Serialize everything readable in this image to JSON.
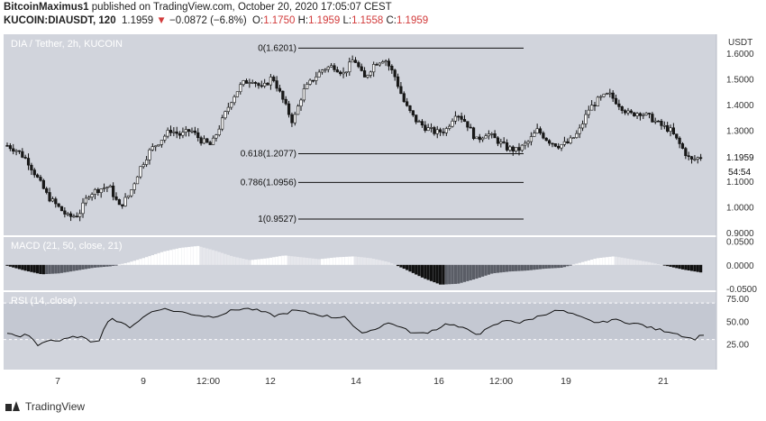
{
  "header": {
    "author": "BitcoinMaximus1",
    "published_text": "published on TradingView.com, October 20, 2020 17:05:07 CEST",
    "symbol": "KUCOIN:DIAUSDT, 120",
    "last": "1.1959",
    "change_icon": "down-triangle-icon",
    "change": "−0.0872 (−6.8%)",
    "o_label": "O:",
    "o_value": "1.1750",
    "h_label": "H:",
    "h_value": "1.1959",
    "l_label": "L:",
    "l_value": "1.1558",
    "c_label": "C:",
    "c_value": "1.1959"
  },
  "main_pane": {
    "legend": "DIA / Tether, 2h, KUCOIN",
    "axis_unit": "USDT",
    "price_tag": "1.1959",
    "countdown": "54:54"
  },
  "macd_pane": {
    "legend": "MACD (21, 50, close, 21)"
  },
  "rsi_pane": {
    "legend": "RSI (14, close)"
  },
  "footer": {
    "brand": "TradingView",
    "logo_icon": "tradingview-logo-icon"
  },
  "colors": {
    "background": "#d1d4dc",
    "candle_up": "#ffffff",
    "candle_down": "#1a1a1a",
    "text_red": "#d23b3b"
  },
  "chart_data": [
    {
      "type": "candlestick",
      "title": "DIA / Tether, 2h, KUCOIN",
      "ylabel": "USDT",
      "ylim": [
        0.9,
        1.66
      ],
      "y_ticks": [
        "1.6000",
        "1.5000",
        "1.4000",
        "1.3000",
        "1.2000",
        "1.1000",
        "1.0000",
        "0.9000"
      ],
      "x_ticks": [
        "7",
        "9",
        "12:00",
        "12",
        "14",
        "16",
        "12:00",
        "19",
        "21"
      ],
      "close_path": [
        1.24,
        1.22,
        1.18,
        1.11,
        1.04,
        1.0,
        0.96,
        0.97,
        1.05,
        1.07,
        1.08,
        1.0,
        1.05,
        1.15,
        1.22,
        1.26,
        1.3,
        1.28,
        1.3,
        1.26,
        1.24,
        1.33,
        1.42,
        1.48,
        1.5,
        1.46,
        1.51,
        1.42,
        1.33,
        1.45,
        1.5,
        1.54,
        1.55,
        1.52,
        1.58,
        1.5,
        1.56,
        1.58,
        1.51,
        1.4,
        1.34,
        1.31,
        1.29,
        1.3,
        1.37,
        1.33,
        1.26,
        1.29,
        1.26,
        1.23,
        1.22,
        1.25,
        1.3,
        1.26,
        1.24,
        1.25,
        1.29,
        1.38,
        1.42,
        1.44,
        1.4,
        1.36,
        1.37,
        1.35,
        1.32,
        1.3,
        1.24,
        1.18,
        1.1959
      ],
      "fib_levels": [
        {
          "label": "0(1.6201)",
          "value": 1.6201
        },
        {
          "label": "0.618(1.2077)",
          "value": 1.2077
        },
        {
          "label": "0.786(1.0956)",
          "value": 1.0956
        },
        {
          "label": "1(0.9527)",
          "value": 0.9527
        }
      ]
    },
    {
      "type": "bar",
      "title": "MACD (21, 50, close, 21)",
      "ylim": [
        -0.05,
        0.055
      ],
      "y_ticks": [
        "0.0500",
        "0.0000",
        "-0.0500"
      ],
      "histogram_path": [
        -0.002,
        -0.012,
        -0.02,
        -0.018,
        -0.012,
        -0.006,
        -0.003,
        0.005,
        0.016,
        0.028,
        0.036,
        0.04,
        0.03,
        0.018,
        0.01,
        0.014,
        0.02,
        0.016,
        0.012,
        0.016,
        0.018,
        0.014,
        0.006,
        -0.01,
        -0.028,
        -0.042,
        -0.04,
        -0.03,
        -0.018,
        -0.014,
        -0.012,
        -0.008,
        -0.006,
        0.004,
        0.014,
        0.018,
        0.012,
        0.006,
        -0.002,
        -0.01,
        -0.016
      ]
    },
    {
      "type": "line",
      "title": "RSI (14, close)",
      "ylim": [
        0,
        80
      ],
      "y_ticks": [
        "75.00",
        "50.00",
        "25.00"
      ],
      "band": [
        30,
        70
      ],
      "values_path": [
        38,
        32,
        36,
        24,
        30,
        28,
        31,
        34,
        28,
        30,
        55,
        48,
        44,
        52,
        60,
        64,
        62,
        60,
        58,
        56,
        55,
        58,
        62,
        64,
        63,
        60,
        56,
        58,
        62,
        60,
        58,
        56,
        54,
        56,
        40,
        38,
        42,
        48,
        46,
        40,
        36,
        38,
        42,
        48,
        44,
        40,
        36,
        42,
        48,
        52,
        48,
        52,
        56,
        60,
        62,
        58,
        54,
        50,
        48,
        52,
        50,
        48,
        46,
        42,
        40,
        38,
        34,
        30,
        36
      ]
    }
  ]
}
